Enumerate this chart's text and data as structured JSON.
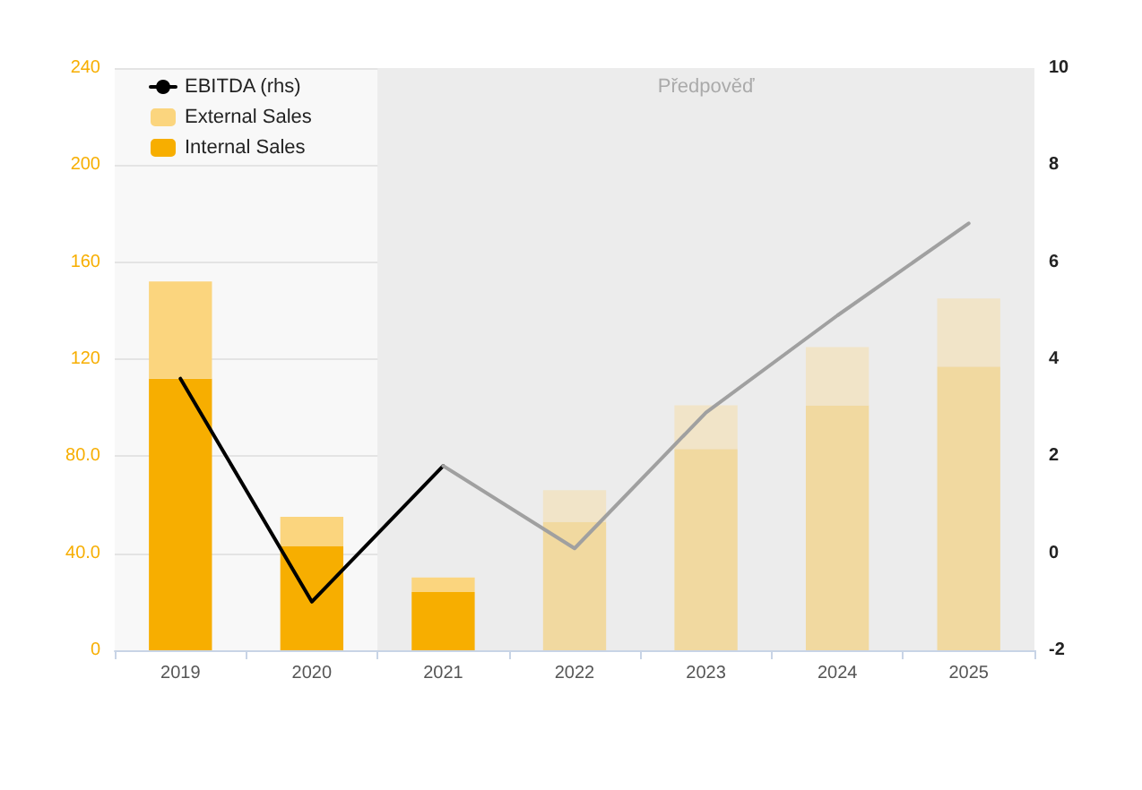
{
  "chart_data": {
    "type": "bar",
    "categories": [
      "2019",
      "2020",
      "2021",
      "2022",
      "2023",
      "2024",
      "2025"
    ],
    "stacked": true,
    "series": [
      {
        "name": "Internal Sales",
        "color": "#f7ae00",
        "colors": [
          "#f7ae00",
          "#f7ae00",
          "#f7ae00",
          "#f1d9a0",
          "#f1d9a0",
          "#f1d9a0",
          "#f1d9a0"
        ],
        "values": [
          112,
          43,
          24,
          53,
          83,
          101,
          117
        ]
      },
      {
        "name": "External Sales",
        "color": "#fbd57e",
        "colors": [
          "#fbd57e",
          "#fbd57e",
          "#fbd57e",
          "#f1e4c8",
          "#f1e4c8",
          "#f1e4c8",
          "#f1e4c8"
        ],
        "values": [
          40,
          12,
          6,
          13,
          18,
          24,
          28
        ]
      },
      {
        "name": "EBITDA (rhs)",
        "type": "line",
        "axis": "y2",
        "color": "#000000",
        "values": [
          3.6,
          -1.0,
          1.8,
          null,
          null,
          null,
          null
        ]
      },
      {
        "type": "line",
        "axis": "y2",
        "color": "#a0a0a0",
        "values": [
          null,
          null,
          1.8,
          0.1,
          2.9,
          4.9,
          6.8
        ]
      }
    ],
    "ylim": [
      0,
      240
    ],
    "yticks": [
      0,
      {
        "value": 40,
        "label": "40.0"
      },
      {
        "value": 80,
        "label": "80.0"
      },
      120,
      160,
      200,
      240
    ],
    "y2lim": [
      -2,
      10
    ],
    "y2ticks": [
      -2,
      0,
      2,
      4,
      6,
      8,
      10
    ],
    "bands": [
      {
        "axis": "x",
        "from": "2021",
        "to": "2025",
        "label": "Předpověď",
        "color": "#ececec"
      }
    ],
    "grid": "y",
    "legend": "top left",
    "marker": "none",
    "line_style": "solid"
  }
}
